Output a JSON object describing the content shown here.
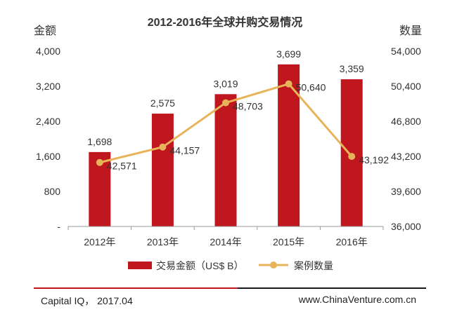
{
  "chart_data": {
    "type": "bar+line",
    "title": "2012-2016年全球并购交易情况",
    "ylabel_left": "金额",
    "ylabel_right": "数量",
    "categories": [
      "2012年",
      "2013年",
      "2014年",
      "2015年",
      "2016年"
    ],
    "left_axis": {
      "ylim": [
        0,
        4000
      ],
      "ticks": [
        "-",
        "800",
        "1,600",
        "2,400",
        "3,200",
        "4,000"
      ],
      "tick_values": [
        0,
        800,
        1600,
        2400,
        3200,
        4000
      ]
    },
    "right_axis": {
      "ylim": [
        36000,
        54000
      ],
      "ticks": [
        "36,000",
        "39,600",
        "43,200",
        "46,800",
        "50,400",
        "54,000"
      ],
      "tick_values": [
        36000,
        39600,
        43200,
        46800,
        50400,
        54000
      ]
    },
    "series": [
      {
        "name": "交易金额（US$ B）",
        "kind": "bar",
        "axis": "left",
        "color": "#c0161d",
        "values": [
          1698,
          2575,
          3019,
          3699,
          3359
        ],
        "labels": [
          "1,698",
          "2,575",
          "3,019",
          "3,699",
          "3,359"
        ]
      },
      {
        "name": "案例数量",
        "kind": "line",
        "axis": "right",
        "color": "#e8b45a",
        "values": [
          42571,
          44157,
          48703,
          50640,
          43192
        ],
        "labels": [
          "42,571",
          "44,157",
          "48,703",
          "50,640",
          "43,192"
        ]
      }
    ],
    "grid": false,
    "legend_position": "bottom"
  },
  "footer": {
    "source": "Capital IQ，  2017.04",
    "site": "www.ChinaVenture.com.cn"
  }
}
